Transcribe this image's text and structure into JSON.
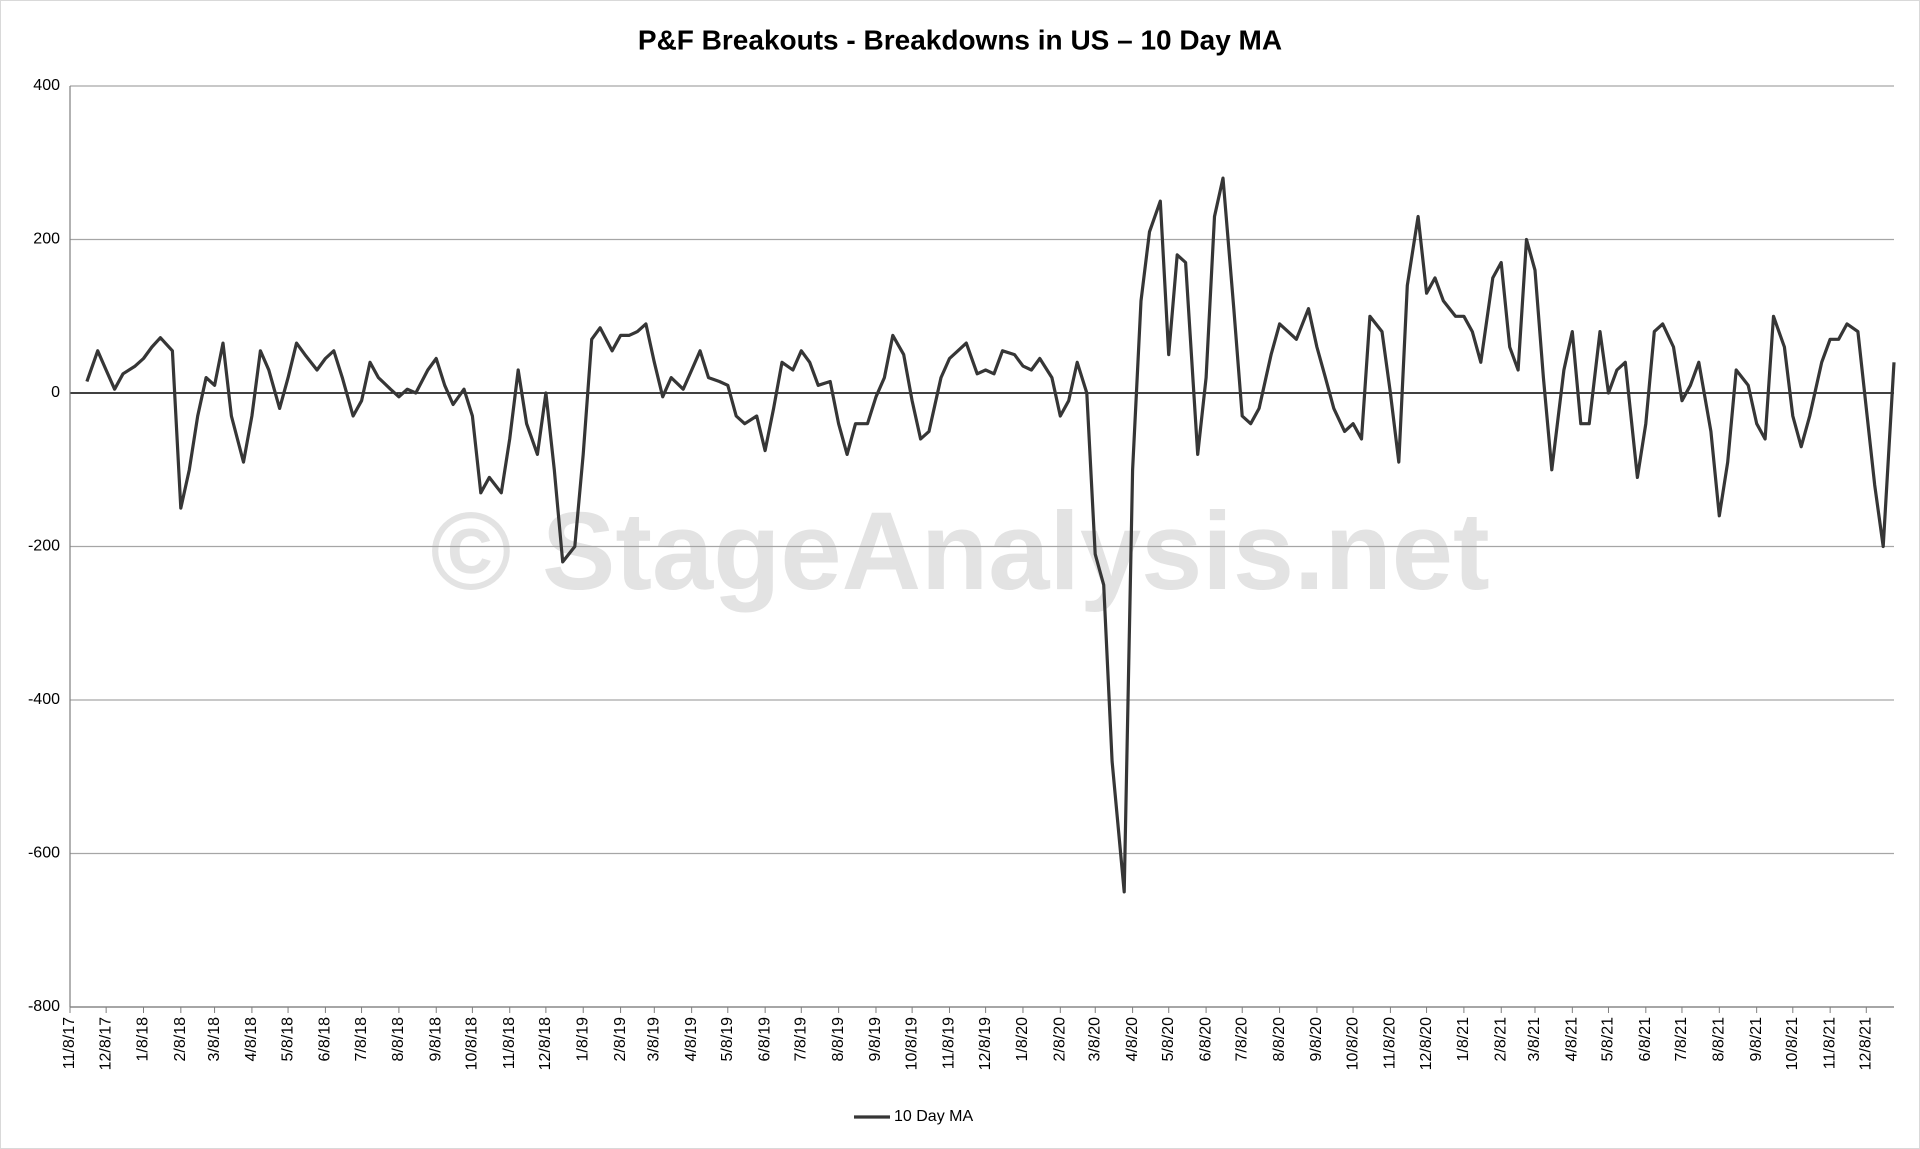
{
  "chart_data": {
    "type": "line",
    "title": "P&F Breakouts - Breakdowns in US – 10 Day MA",
    "watermark": "© StageAnalysis.net",
    "x": [
      "11/22/17",
      "12/1/17",
      "12/8/17",
      "12/15/17",
      "12/22/17",
      "1/1/18",
      "1/8/18",
      "1/15/18",
      "1/22/18",
      "2/1/18",
      "2/8/18",
      "2/15/18",
      "2/22/18",
      "3/1/18",
      "3/8/18",
      "3/15/18",
      "3/22/18",
      "4/1/18",
      "4/8/18",
      "4/15/18",
      "4/22/18",
      "5/1/18",
      "5/8/18",
      "5/15/18",
      "5/22/18",
      "6/1/18",
      "6/8/18",
      "6/15/18",
      "6/22/18",
      "7/1/18",
      "7/8/18",
      "7/15/18",
      "7/22/18",
      "8/1/18",
      "8/8/18",
      "8/15/18",
      "8/22/18",
      "9/1/18",
      "9/8/18",
      "9/15/18",
      "9/22/18",
      "10/1/18",
      "10/8/18",
      "10/15/18",
      "10/22/18",
      "11/1/18",
      "11/8/18",
      "11/15/18",
      "11/22/18",
      "12/1/18",
      "12/8/18",
      "12/15/18",
      "12/22/18",
      "1/1/19",
      "1/8/19",
      "1/15/19",
      "1/22/19",
      "2/1/19",
      "2/8/19",
      "2/15/19",
      "2/22/19",
      "3/1/19",
      "3/8/19",
      "3/15/19",
      "3/22/19",
      "4/1/19",
      "4/8/19",
      "4/15/19",
      "4/22/19",
      "5/1/19",
      "5/8/19",
      "5/15/19",
      "5/22/19",
      "6/1/19",
      "6/8/19",
      "6/15/19",
      "6/22/19",
      "7/1/19",
      "7/8/19",
      "7/15/19",
      "7/22/19",
      "8/1/19",
      "8/8/19",
      "8/15/19",
      "8/22/19",
      "9/1/19",
      "9/8/19",
      "9/15/19",
      "9/22/19",
      "10/1/19",
      "10/8/19",
      "10/15/19",
      "10/22/19",
      "11/1/19",
      "11/8/19",
      "11/15/19",
      "11/22/19",
      "12/1/19",
      "12/8/19",
      "12/15/19",
      "12/22/19",
      "1/1/20",
      "1/8/20",
      "1/15/20",
      "1/22/20",
      "2/1/20",
      "2/8/20",
      "2/15/20",
      "2/22/20",
      "3/1/20",
      "3/8/20",
      "3/15/20",
      "3/22/20",
      "4/1/20",
      "4/8/20",
      "4/15/20",
      "4/22/20",
      "5/1/20",
      "5/8/20",
      "5/15/20",
      "5/22/20",
      "6/1/20",
      "6/8/20",
      "6/15/20",
      "6/22/20",
      "7/1/20",
      "7/8/20",
      "7/15/20",
      "7/22/20",
      "8/1/20",
      "8/8/20",
      "8/15/20",
      "8/22/20",
      "9/1/20",
      "9/8/20",
      "9/15/20",
      "9/22/20",
      "10/1/20",
      "10/8/20",
      "10/15/20",
      "10/22/20",
      "11/1/20",
      "11/8/20",
      "11/15/20",
      "11/22/20",
      "12/1/20",
      "12/8/20",
      "12/15/20",
      "12/22/20",
      "1/1/21",
      "1/8/21",
      "1/15/21",
      "1/22/21",
      "2/1/21",
      "2/8/21",
      "2/15/21",
      "2/22/21",
      "3/1/21",
      "3/8/21",
      "3/15/21",
      "3/22/21",
      "4/1/21",
      "4/8/21",
      "4/15/21",
      "4/22/21",
      "5/1/21",
      "5/8/21",
      "5/15/21",
      "5/22/21",
      "6/1/21",
      "6/8/21",
      "6/15/21",
      "6/22/21",
      "7/1/21",
      "7/8/21",
      "7/15/21",
      "7/22/21",
      "8/1/21",
      "8/8/21",
      "8/15/21",
      "8/22/21",
      "9/1/21",
      "9/8/21",
      "9/15/21",
      "9/22/21",
      "10/1/21",
      "10/8/21",
      "10/15/21",
      "10/22/21",
      "11/1/21",
      "11/8/21",
      "11/15/21",
      "11/22/21",
      "12/1/21",
      "12/8/21",
      "12/15/21",
      "12/22/21",
      "12/31/21"
    ],
    "series": [
      {
        "name": "10 Day MA",
        "color": "#363636",
        "values": [
          15,
          55,
          30,
          5,
          25,
          35,
          45,
          60,
          72,
          55,
          -150,
          -100,
          -30,
          20,
          10,
          65,
          -30,
          -90,
          -30,
          55,
          30,
          -20,
          20,
          65,
          50,
          30,
          45,
          55,
          20,
          -30,
          -10,
          40,
          20,
          5,
          -5,
          5,
          0,
          30,
          45,
          10,
          -15,
          5,
          -30,
          -130,
          -110,
          -130,
          -60,
          30,
          -40,
          -80,
          0,
          -100,
          -220,
          -200,
          -80,
          70,
          85,
          55,
          75,
          75,
          80,
          90,
          40,
          -5,
          20,
          5,
          30,
          55,
          20,
          15,
          10,
          -30,
          -40,
          -30,
          -75,
          -20,
          40,
          30,
          55,
          40,
          10,
          15,
          -40,
          -80,
          -40,
          -40,
          -5,
          20,
          75,
          50,
          -10,
          -60,
          -50,
          20,
          45,
          55,
          65,
          25,
          30,
          25,
          55,
          50,
          35,
          30,
          45,
          20,
          -30,
          -10,
          40,
          0,
          -210,
          -250,
          -480,
          -650,
          -100,
          120,
          210,
          250,
          50,
          180,
          170,
          -80,
          20,
          230,
          280,
          110,
          -30,
          -40,
          -20,
          50,
          90,
          80,
          70,
          110,
          60,
          20,
          -20,
          -50,
          -40,
          -60,
          100,
          80,
          0,
          -90,
          140,
          230,
          130,
          150,
          120,
          100,
          100,
          80,
          40,
          150,
          170,
          60,
          30,
          200,
          160,
          20,
          -100,
          30,
          80,
          -40,
          -40,
          80,
          0,
          30,
          40,
          -110,
          -40,
          80,
          90,
          60,
          -10,
          10,
          40,
          -50,
          -160,
          -90,
          30,
          10,
          -40,
          -60,
          100,
          60,
          -30,
          -70,
          -30,
          40,
          70,
          70,
          90,
          80,
          -20,
          -120,
          -200,
          40
        ]
      }
    ],
    "xlim": [
      "11/8/17",
      "12/31/21"
    ],
    "xticks": [
      "11/8/17",
      "12/8/17",
      "1/8/18",
      "2/8/18",
      "3/8/18",
      "4/8/18",
      "5/8/18",
      "6/8/18",
      "7/8/18",
      "8/8/18",
      "9/8/18",
      "10/8/18",
      "11/8/18",
      "12/8/18",
      "1/8/19",
      "2/8/19",
      "3/8/19",
      "4/8/19",
      "5/8/19",
      "6/8/19",
      "7/8/19",
      "8/8/19",
      "9/8/19",
      "10/8/19",
      "11/8/19",
      "12/8/19",
      "1/8/20",
      "2/8/20",
      "3/8/20",
      "4/8/20",
      "5/8/20",
      "6/8/20",
      "7/8/20",
      "8/8/20",
      "9/8/20",
      "10/8/20",
      "11/8/20",
      "12/8/20",
      "1/8/21",
      "2/8/21",
      "3/8/21",
      "4/8/21",
      "5/8/21",
      "6/8/21",
      "7/8/21",
      "8/8/21",
      "9/8/21",
      "10/8/21",
      "11/8/21",
      "12/8/21"
    ],
    "ylim": [
      -800,
      400
    ],
    "yticks": [
      -800,
      -600,
      -400,
      -200,
      0,
      200,
      400
    ],
    "grid": true,
    "legend": "bottom"
  }
}
